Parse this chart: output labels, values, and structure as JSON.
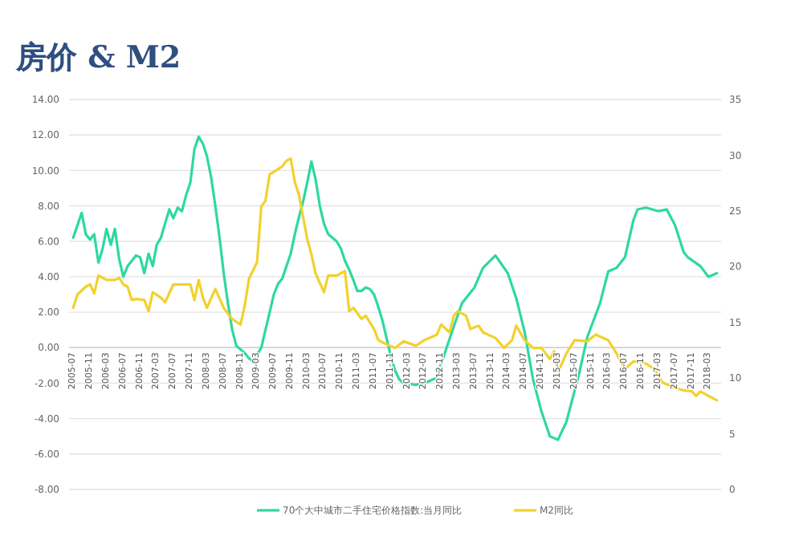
{
  "chart_data": {
    "type": "line",
    "title": "房价 & M2",
    "series": [
      {
        "name": "70个大中城市二手住宅价格指数:当月同比",
        "color": "#2ed8a3",
        "x": [
          "2005-07",
          "2005-09",
          "2005-10",
          "2005-11",
          "2005-12",
          "2006-01",
          "2006-02",
          "2006-03",
          "2006-04",
          "2006-05",
          "2006-06",
          "2006-07",
          "2006-08",
          "2006-10",
          "2006-11",
          "2006-12",
          "2007-01",
          "2007-02",
          "2007-03",
          "2007-04",
          "2007-05",
          "2007-06",
          "2007-07",
          "2007-08",
          "2007-09",
          "2007-10",
          "2007-11",
          "2007-12",
          "2008-01",
          "2008-02",
          "2008-03",
          "2008-04",
          "2008-05",
          "2008-06",
          "2008-07",
          "2008-08",
          "2008-09",
          "2008-10",
          "2008-11",
          "2008-12",
          "2009-01",
          "2009-02",
          "2009-03",
          "2009-04",
          "2009-05",
          "2009-06",
          "2009-07",
          "2009-08",
          "2009-09",
          "2009-10",
          "2009-11",
          "2009-12",
          "2010-01",
          "2010-02",
          "2010-03",
          "2010-04",
          "2010-05",
          "2010-06",
          "2010-07",
          "2010-08",
          "2010-09",
          "2010-10",
          "2010-11",
          "2010-12",
          "2011-01",
          "2011-02",
          "2011-03",
          "2011-04",
          "2011-05",
          "2011-06",
          "2011-07",
          "2011-08",
          "2011-09",
          "2011-10",
          "2011-11",
          "2011-12",
          "2012-01",
          "2012-02",
          "2012-05",
          "2012-07",
          "2012-10",
          "2012-11",
          "2013-02",
          "2013-04",
          "2013-07",
          "2013-09",
          "2013-12",
          "2014-03",
          "2014-05",
          "2014-07",
          "2014-09",
          "2014-11",
          "2015-01",
          "2015-03",
          "2015-05",
          "2015-08",
          "2015-10",
          "2016-01",
          "2016-03",
          "2016-05",
          "2016-07",
          "2016-09",
          "2016-10",
          "2016-12",
          "2017-03",
          "2017-05",
          "2017-07",
          "2017-09",
          "2017-10",
          "2018-01",
          "2018-03",
          "2018-05"
        ],
        "values": [
          6.2,
          7.6,
          6.4,
          6.1,
          6.4,
          4.8,
          5.6,
          6.7,
          5.8,
          6.7,
          5.0,
          4.0,
          4.6,
          5.2,
          5.1,
          4.2,
          5.3,
          4.6,
          5.8,
          6.2,
          7.0,
          7.8,
          7.3,
          7.9,
          7.7,
          8.6,
          9.3,
          11.2,
          11.9,
          11.5,
          10.8,
          9.6,
          8.0,
          6.2,
          4.2,
          2.5,
          1.0,
          0.1,
          -0.1,
          -0.3,
          -0.6,
          -0.8,
          -0.4,
          0.0,
          1.0,
          2.0,
          3.0,
          3.6,
          3.9,
          4.6,
          5.3,
          6.4,
          7.4,
          8.3,
          9.3,
          10.5,
          9.5,
          8.0,
          7.0,
          6.4,
          6.2,
          6.0,
          5.6,
          4.9,
          4.4,
          3.8,
          3.2,
          3.2,
          3.4,
          3.3,
          3.0,
          2.3,
          1.5,
          0.5,
          -0.5,
          -1.3,
          -1.8,
          -2.0,
          -2.1,
          -2.0,
          -1.7,
          -0.9,
          1.2,
          2.5,
          3.4,
          4.5,
          5.2,
          4.2,
          2.8,
          0.9,
          -1.8,
          -3.6,
          -5.0,
          -5.2,
          -4.2,
          -1.5,
          0.6,
          2.5,
          4.3,
          4.5,
          5.1,
          7.2,
          7.8,
          7.9,
          7.7,
          7.8,
          6.9,
          5.4,
          5.1,
          4.6,
          4.0,
          4.2
        ]
      },
      {
        "name": "M2同比",
        "color": "#f2d12e",
        "axis": "y2",
        "x": [
          "2005-07",
          "2005-08",
          "2005-10",
          "2005-11",
          "2005-12",
          "2006-01",
          "2006-03",
          "2006-05",
          "2006-06",
          "2006-07",
          "2006-08",
          "2006-09",
          "2006-10",
          "2006-12",
          "2007-01",
          "2007-02",
          "2007-04",
          "2007-05",
          "2007-07",
          "2007-09",
          "2007-11",
          "2007-12",
          "2008-01",
          "2008-02",
          "2008-03",
          "2008-05",
          "2008-07",
          "2008-09",
          "2008-11",
          "2008-12",
          "2009-01",
          "2009-03",
          "2009-04",
          "2009-05",
          "2009-06",
          "2009-07",
          "2009-09",
          "2009-10",
          "2009-11",
          "2009-12",
          "2010-01",
          "2010-03",
          "2010-04",
          "2010-05",
          "2010-07",
          "2010-08",
          "2010-10",
          "2010-12",
          "2011-01",
          "2011-02",
          "2011-04",
          "2011-05",
          "2011-07",
          "2011-08",
          "2011-09",
          "2011-12",
          "2012-02",
          "2012-05",
          "2012-07",
          "2012-10",
          "2012-11",
          "2013-01",
          "2013-02",
          "2013-03",
          "2013-05",
          "2013-06",
          "2013-08",
          "2013-09",
          "2013-12",
          "2014-02",
          "2014-04",
          "2014-05",
          "2014-07",
          "2014-09",
          "2014-11",
          "2015-01",
          "2015-02",
          "2015-03",
          "2015-05",
          "2015-07",
          "2015-10",
          "2015-12",
          "2016-03",
          "2016-05",
          "2016-07",
          "2016-09",
          "2016-12",
          "2017-02",
          "2017-04",
          "2017-07",
          "2017-09",
          "2017-11",
          "2017-12",
          "2018-01",
          "2018-03",
          "2018-05"
        ],
        "values": [
          16.3,
          17.5,
          18.2,
          18.4,
          17.6,
          19.2,
          18.8,
          18.8,
          19.0,
          18.4,
          18.2,
          17.0,
          17.1,
          17.0,
          16.0,
          17.7,
          17.2,
          16.8,
          18.4,
          18.4,
          18.4,
          17.0,
          18.8,
          17.2,
          16.3,
          18.0,
          16.3,
          15.3,
          14.8,
          16.5,
          18.9,
          20.4,
          25.4,
          25.9,
          28.3,
          28.5,
          29.0,
          29.5,
          29.7,
          27.6,
          26.4,
          22.5,
          21.1,
          19.4,
          17.7,
          19.2,
          19.2,
          19.6,
          16.0,
          16.3,
          15.3,
          15.6,
          14.4,
          13.4,
          13.2,
          12.7,
          13.3,
          12.9,
          13.4,
          13.9,
          14.8,
          14.1,
          15.6,
          16.0,
          15.6,
          14.4,
          14.7,
          14.1,
          13.6,
          12.7,
          13.4,
          14.7,
          13.4,
          12.7,
          12.7,
          11.7,
          12.4,
          10.5,
          12.2,
          13.4,
          13.3,
          13.9,
          13.4,
          12.2,
          10.8,
          11.5,
          11.3,
          10.8,
          9.6,
          9.1,
          8.9,
          8.8,
          8.4,
          8.8,
          8.4,
          8.0
        ]
      }
    ],
    "xlim": [
      "2005-06",
      "2018-06"
    ],
    "xticks": [
      "2005-07",
      "2005-11",
      "2006-03",
      "2006-07",
      "2006-11",
      "2007-03",
      "2007-07",
      "2007-11",
      "2008-03",
      "2008-07",
      "2008-11",
      "2009-03",
      "2009-07",
      "2009-11",
      "2010-03",
      "2010-07",
      "2010-11",
      "2011-03",
      "2011-07",
      "2011-11",
      "2012-03",
      "2012-07",
      "2012-11",
      "2013-03",
      "2013-07",
      "2013-11",
      "2014-03",
      "2014-07",
      "2014-11",
      "2015-03",
      "2015-07",
      "2015-11",
      "2016-03",
      "2016-07",
      "2016-11",
      "2017-03",
      "2017-07",
      "2017-11",
      "2018-03"
    ],
    "ylim": [
      -8,
      14
    ],
    "yticks": [
      {
        "value": -8,
        "label": "-8.00"
      },
      {
        "value": -6,
        "label": "-6.00"
      },
      {
        "value": -4,
        "label": "-4.00"
      },
      {
        "value": -2,
        "label": "-2.00"
      },
      {
        "value": 0,
        "label": "0.00"
      },
      {
        "value": 2,
        "label": "2.00"
      },
      {
        "value": 4,
        "label": "4.00"
      },
      {
        "value": 6,
        "label": "6.00"
      },
      {
        "value": 8,
        "label": "8.00"
      },
      {
        "value": 10,
        "label": "10.00"
      },
      {
        "value": 12,
        "label": "12.00"
      },
      {
        "value": 14,
        "label": "14.00"
      }
    ],
    "y2lim": [
      0,
      35
    ],
    "y2ticks": [
      0,
      5,
      10,
      15,
      20,
      25,
      30,
      35
    ],
    "grid": "y",
    "legend": "bottom",
    "marker": "none",
    "line_style": "solid"
  }
}
